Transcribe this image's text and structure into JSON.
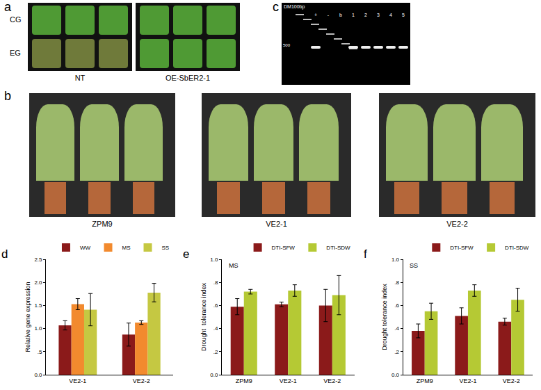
{
  "chart_data": [
    {
      "type": "bar",
      "title": "d",
      "categories": [
        "VE2-1",
        "VE2-2"
      ],
      "series": [
        {
          "name": "WW",
          "color": "#8b1a1a",
          "values": [
            1.07,
            0.87
          ],
          "errors": [
            0.1,
            0.25
          ]
        },
        {
          "name": "MS",
          "color": "#f28a2e",
          "values": [
            1.53,
            1.13
          ],
          "errors": [
            0.12,
            0.04
          ]
        },
        {
          "name": "SS",
          "color": "#c5c842",
          "values": [
            1.41,
            1.78
          ],
          "errors": [
            0.35,
            0.2
          ]
        }
      ],
      "y_label": "Relative gene expression",
      "ylim": [
        0,
        2.5
      ],
      "yticks": [
        {
          "value": 0,
          "label": "0.0"
        },
        {
          "value": 0.5,
          "label": ".5"
        },
        {
          "value": 1,
          "label": "1.0"
        },
        {
          "value": 1.5,
          "label": "1.5"
        },
        {
          "value": 2,
          "label": "2.0"
        },
        {
          "value": 2.5,
          "label": "2.5"
        }
      ],
      "grid": false,
      "legend": "top right"
    },
    {
      "type": "bar",
      "title": "e",
      "categories": [
        "ZPM9",
        "VE2-1",
        "VE2-2"
      ],
      "series": [
        {
          "name": "DTI-SFW",
          "color": "#8b1a1a",
          "values": [
            0.59,
            0.61,
            0.6
          ],
          "errors": [
            0.07,
            0.02,
            0.14
          ]
        },
        {
          "name": "DTI-SDW",
          "color": "#b5c934",
          "values": [
            0.72,
            0.73,
            0.69
          ],
          "errors": [
            0.02,
            0.05,
            0.17
          ]
        }
      ],
      "y_label": "Drought  tolerance index",
      "annotations": [
        "MS"
      ],
      "ylim": [
        0,
        1
      ],
      "yticks": [
        {
          "value": 0,
          "label": "0.0"
        },
        {
          "value": 0.2,
          "label": ".2"
        },
        {
          "value": 0.4,
          "label": ".4"
        },
        {
          "value": 0.6,
          "label": ".6"
        },
        {
          "value": 0.8,
          "label": ".8"
        },
        {
          "value": 1,
          "label": "1.0"
        }
      ],
      "grid": false,
      "legend": "top right"
    },
    {
      "type": "bar",
      "title": "f",
      "categories": [
        "ZPM9",
        "VE2-1",
        "VE2-2"
      ],
      "series": [
        {
          "name": "DTI-SFW",
          "color": "#8b1a1a",
          "values": [
            0.38,
            0.51,
            0.46
          ],
          "errors": [
            0.06,
            0.07,
            0.03
          ]
        },
        {
          "name": "DTI-SDW",
          "color": "#b5c934",
          "values": [
            0.55,
            0.73,
            0.65
          ],
          "errors": [
            0.07,
            0.05,
            0.1
          ]
        }
      ],
      "y_label": "Drought tolerance index",
      "annotations": [
        "SS"
      ],
      "ylim": [
        0,
        1
      ],
      "yticks": [
        {
          "value": 0,
          "label": "0.0"
        },
        {
          "value": 0.2,
          "label": ".2"
        },
        {
          "value": 0.4,
          "label": ".4"
        },
        {
          "value": 0.6,
          "label": ".6"
        },
        {
          "value": 0.8,
          "label": ".8"
        },
        {
          "value": 1,
          "label": "1.0"
        }
      ],
      "grid": false,
      "legend": "top right"
    }
  ],
  "photo_panels": {
    "a": {
      "row_labels": [
        "CG",
        "EG"
      ],
      "column_labels": [
        "NT",
        "OE-SbER2-1"
      ]
    },
    "b": {
      "labels": [
        "ZPM9",
        "VE2-1",
        "VE2-2"
      ]
    },
    "c": {
      "ladder": "DM100bp",
      "size_mark": "500",
      "lanes": [
        "+",
        "-",
        "b",
        "1",
        "2",
        "3",
        "4",
        "5"
      ]
    }
  }
}
